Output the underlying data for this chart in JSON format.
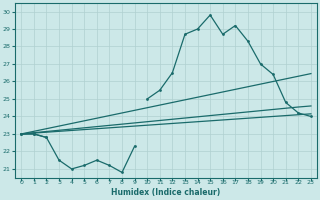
{
  "x_values": [
    0,
    1,
    2,
    3,
    4,
    5,
    6,
    7,
    8,
    9,
    10,
    11,
    12,
    13,
    14,
    15,
    16,
    17,
    18,
    19,
    20,
    21,
    22,
    23
  ],
  "line_zigzag": [
    23,
    23,
    22.8,
    21.5,
    21,
    21.2,
    21.5,
    21.2,
    20.8,
    22.3,
    null,
    null,
    null,
    null,
    null,
    null,
    null,
    null,
    null,
    null,
    null,
    null,
    null,
    null
  ],
  "line_main": [
    23,
    23,
    22.8,
    null,
    null,
    null,
    null,
    null,
    null,
    null,
    25,
    25.5,
    26.5,
    28.7,
    29,
    29.8,
    28.7,
    29.2,
    28.3,
    27,
    26.4,
    24.8,
    24.2,
    24
  ],
  "line_flat1": [
    23,
    23.05,
    23.1,
    23.15,
    23.2,
    23.25,
    23.3,
    23.35,
    23.4,
    23.45,
    23.5,
    23.55,
    23.6,
    23.65,
    23.7,
    23.75,
    23.8,
    23.85,
    23.9,
    23.95,
    24.0,
    24.05,
    24.1,
    24.15
  ],
  "line_flat2": [
    23,
    23.07,
    23.14,
    23.21,
    23.28,
    23.35,
    23.42,
    23.49,
    23.56,
    23.63,
    23.7,
    23.77,
    23.84,
    23.91,
    23.98,
    24.05,
    24.12,
    24.19,
    24.26,
    24.33,
    24.4,
    24.47,
    24.54,
    24.6
  ],
  "line_flat3": [
    23,
    23.15,
    23.3,
    23.45,
    23.6,
    23.75,
    23.9,
    24.05,
    24.2,
    24.35,
    24.5,
    24.65,
    24.8,
    24.95,
    25.1,
    25.25,
    25.4,
    25.55,
    25.7,
    25.85,
    26.0,
    26.15,
    26.3,
    26.45
  ],
  "background_color": "#cce8e8",
  "grid_color": "#b0d0d0",
  "line_color": "#1a6b6b",
  "xlim": [
    -0.5,
    23.5
  ],
  "ylim": [
    20.5,
    30.5
  ],
  "yticks": [
    21,
    22,
    23,
    24,
    25,
    26,
    27,
    28,
    29,
    30
  ],
  "xticks": [
    0,
    1,
    2,
    3,
    4,
    5,
    6,
    7,
    8,
    9,
    10,
    11,
    12,
    13,
    14,
    15,
    16,
    17,
    18,
    19,
    20,
    21,
    22,
    23
  ],
  "xlabel": "Humidex (Indice chaleur)"
}
